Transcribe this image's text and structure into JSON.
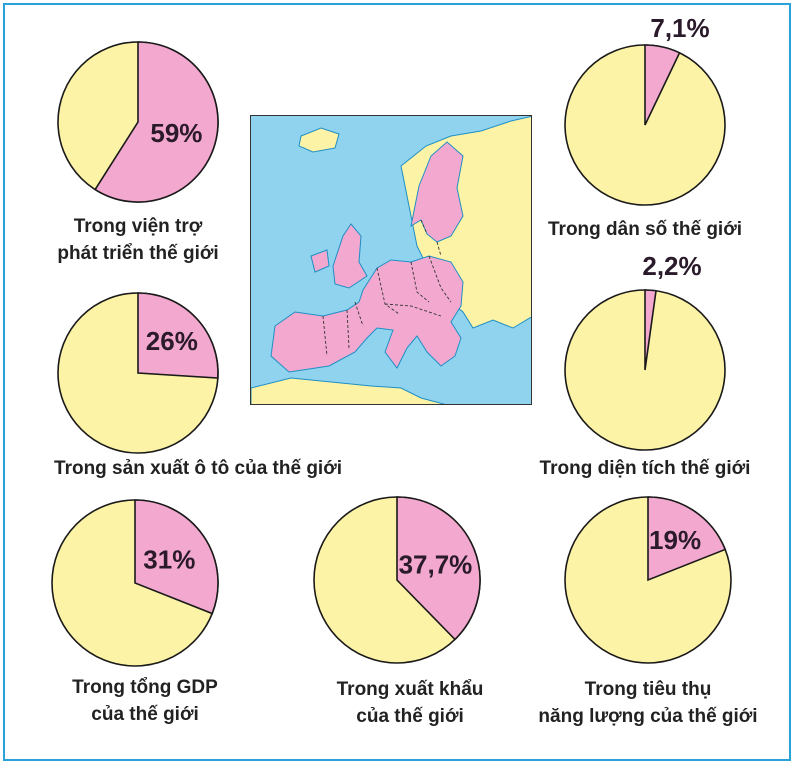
{
  "chart_data": [
    {
      "type": "pie",
      "value": 59,
      "value_label": "59%",
      "label_lines": [
        "Trong viện trợ",
        "phát triển thế giới"
      ]
    },
    {
      "type": "pie",
      "value": 7.1,
      "value_label": "7,1%",
      "label_lines": [
        "Trong dân số thế giới"
      ]
    },
    {
      "type": "pie",
      "value": 26,
      "value_label": "26%",
      "label_lines": [
        "Trong sản xuất ô tô của thế giới"
      ]
    },
    {
      "type": "pie",
      "value": 2.2,
      "value_label": "2,2%",
      "label_lines": [
        "Trong diện tích thế giới"
      ]
    },
    {
      "type": "pie",
      "value": 31,
      "value_label": "31%",
      "label_lines": [
        "Trong tổng GDP",
        "của thế giới"
      ]
    },
    {
      "type": "pie",
      "value": 37.7,
      "value_label": "37,7%",
      "label_lines": [
        "Trong xuất khẩu",
        "của thế giới"
      ]
    },
    {
      "type": "pie",
      "value": 19,
      "value_label": "19%",
      "label_lines": [
        "Trong tiêu thụ",
        "năng lượng của thế giới"
      ]
    }
  ],
  "colors": {
    "share": "#f3a9cf",
    "rest": "#fdf3a6",
    "outline": "#1a1a1a",
    "frame": "#2aa3d8",
    "map_sea": "#8fd3ef",
    "map_eu": "#f3a9cf",
    "map_other": "#fdf3a6"
  },
  "map": {
    "name": "europe-map"
  }
}
